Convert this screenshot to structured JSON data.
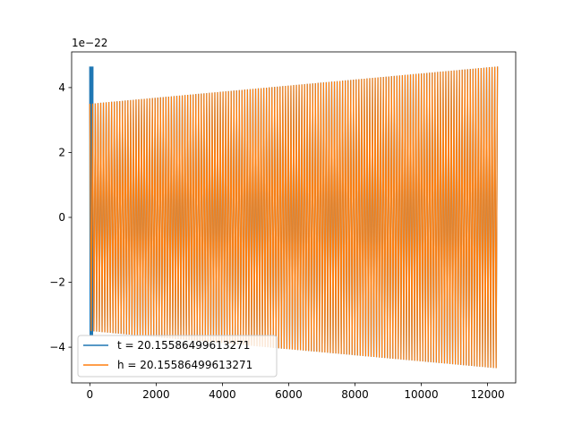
{
  "chart_data": {
    "type": "line",
    "title": "",
    "xlabel": "",
    "ylabel": "",
    "offset_text": "1e−22",
    "xlim": [
      -550,
      12850
    ],
    "ylim": [
      -5.1,
      5.1
    ],
    "x_ticks": [
      0,
      2000,
      4000,
      6000,
      8000,
      10000,
      12000
    ],
    "x_tick_labels": [
      "0",
      "2000",
      "4000",
      "6000",
      "8000",
      "10000",
      "12000"
    ],
    "y_ticks": [
      -4,
      -2,
      0,
      2,
      4
    ],
    "y_tick_labels": [
      "−4",
      "−2",
      "0",
      "2",
      "4"
    ],
    "grid": false,
    "legend_position": "lower-left",
    "series": [
      {
        "name": "t = 20.15586499613271",
        "color": "#1f77b4",
        "x_range": [
          0,
          12300
        ],
        "initial_spike": {
          "x_range": [
            0,
            90
          ],
          "amplitude": 4.65
        },
        "amplitude_start": 3.5,
        "amplitude_end": 4.65,
        "cycles": 150
      },
      {
        "name": "h = 20.15586499613271",
        "color": "#ff7f0e",
        "x_range": [
          0,
          12300
        ],
        "amplitude_start": 3.5,
        "amplitude_end": 4.65,
        "cycles": 150
      }
    ]
  }
}
